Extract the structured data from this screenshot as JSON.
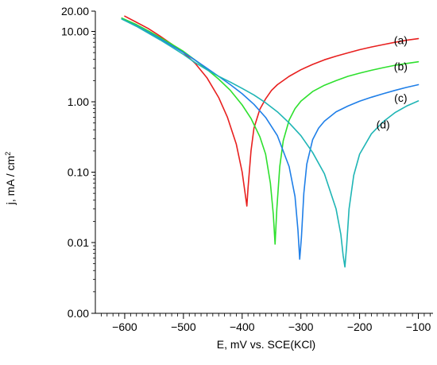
{
  "chart_data": {
    "type": "line",
    "xlabel": "E, mV vs. SCE(KCl)",
    "ylabel_main": "j, mA / cm",
    "ylabel_sup": "2",
    "xlim": [
      -650,
      -75
    ],
    "x_ticks": [
      {
        "value": -600,
        "label": "−600"
      },
      {
        "value": -500,
        "label": "−500"
      },
      {
        "value": -400,
        "label": "−400"
      },
      {
        "value": -300,
        "label": "−300"
      },
      {
        "value": -200,
        "label": "−200"
      },
      {
        "value": -100,
        "label": "−100"
      }
    ],
    "y_ticks": [
      "20.00",
      "10.00",
      "1.00",
      "0.10",
      "0.01",
      "0.00"
    ],
    "y_scale": "log",
    "grid": false,
    "series": [
      {
        "name": "(a)",
        "color": "#e8201f",
        "x": [
          -600,
          -580,
          -560,
          -540,
          -520,
          -500,
          -480,
          -460,
          -440,
          -425,
          -410,
          -400,
          -395,
          -392,
          -390,
          -385,
          -380,
          -370,
          -360,
          -350,
          -340,
          -320,
          -300,
          -280,
          -260,
          -240,
          -220,
          -200,
          -180,
          -160,
          -140,
          -120,
          -100
        ],
        "y": [
          16.5,
          13.5,
          11.0,
          8.6,
          6.6,
          5.0,
          3.5,
          2.2,
          1.15,
          0.6,
          0.25,
          0.1,
          0.05,
          0.033,
          0.06,
          0.2,
          0.42,
          0.78,
          1.1,
          1.45,
          1.75,
          2.3,
          2.85,
          3.4,
          3.95,
          4.45,
          4.95,
          5.5,
          6.0,
          6.5,
          7.0,
          7.5,
          7.9
        ]
      },
      {
        "name": "(b)",
        "color": "#2ee02e",
        "x": [
          -605,
          -580,
          -560,
          -540,
          -520,
          -500,
          -480,
          -460,
          -440,
          -420,
          -400,
          -385,
          -370,
          -360,
          -352,
          -347,
          -344,
          -341,
          -336,
          -330,
          -320,
          -310,
          -300,
          -280,
          -260,
          -240,
          -220,
          -200,
          -180,
          -160,
          -140,
          -120,
          -100
        ],
        "y": [
          15.5,
          12.5,
          10.2,
          8.2,
          6.6,
          5.2,
          3.9,
          2.9,
          2.1,
          1.45,
          0.9,
          0.58,
          0.32,
          0.18,
          0.07,
          0.025,
          0.0095,
          0.03,
          0.12,
          0.28,
          0.55,
          0.8,
          1.02,
          1.4,
          1.72,
          2.0,
          2.3,
          2.55,
          2.8,
          3.05,
          3.3,
          3.5,
          3.7
        ]
      },
      {
        "name": "(c)",
        "color": "#1f7fe8",
        "x": [
          -605,
          -580,
          -560,
          -540,
          -520,
          -500,
          -480,
          -460,
          -440,
          -420,
          -400,
          -380,
          -360,
          -340,
          -320,
          -310,
          -305,
          -302,
          -299,
          -295,
          -290,
          -280,
          -270,
          -260,
          -240,
          -220,
          -200,
          -180,
          -160,
          -140,
          -120,
          -100
        ],
        "y": [
          15.0,
          12.0,
          9.8,
          7.9,
          6.3,
          5.0,
          3.9,
          3.0,
          2.3,
          1.75,
          1.3,
          0.92,
          0.6,
          0.33,
          0.12,
          0.045,
          0.015,
          0.0058,
          0.012,
          0.05,
          0.13,
          0.29,
          0.42,
          0.53,
          0.72,
          0.87,
          1.02,
          1.16,
          1.3,
          1.45,
          1.6,
          1.75
        ]
      },
      {
        "name": "(d)",
        "color": "#1fb5b5",
        "x": [
          -605,
          -580,
          -560,
          -540,
          -520,
          -500,
          -480,
          -460,
          -440,
          -420,
          -400,
          -380,
          -360,
          -340,
          -320,
          -300,
          -280,
          -260,
          -240,
          -232,
          -228,
          -225,
          -222,
          -218,
          -210,
          -200,
          -180,
          -160,
          -140,
          -120,
          -100
        ],
        "y": [
          15.0,
          11.8,
          9.5,
          7.6,
          6.0,
          4.7,
          3.6,
          2.85,
          2.3,
          1.9,
          1.55,
          1.25,
          0.97,
          0.72,
          0.5,
          0.33,
          0.19,
          0.095,
          0.03,
          0.013,
          0.0065,
          0.0045,
          0.009,
          0.03,
          0.09,
          0.18,
          0.35,
          0.52,
          0.7,
          0.87,
          1.03
        ]
      }
    ],
    "annotations": [
      {
        "text": "(a)",
        "x": -130,
        "y": 6.6
      },
      {
        "text": "(b)",
        "x": -130,
        "y": 2.8
      },
      {
        "text": "(c)",
        "x": -130,
        "y": 1.0
      },
      {
        "text": "(d)",
        "x": -160,
        "y": 0.42
      }
    ]
  }
}
